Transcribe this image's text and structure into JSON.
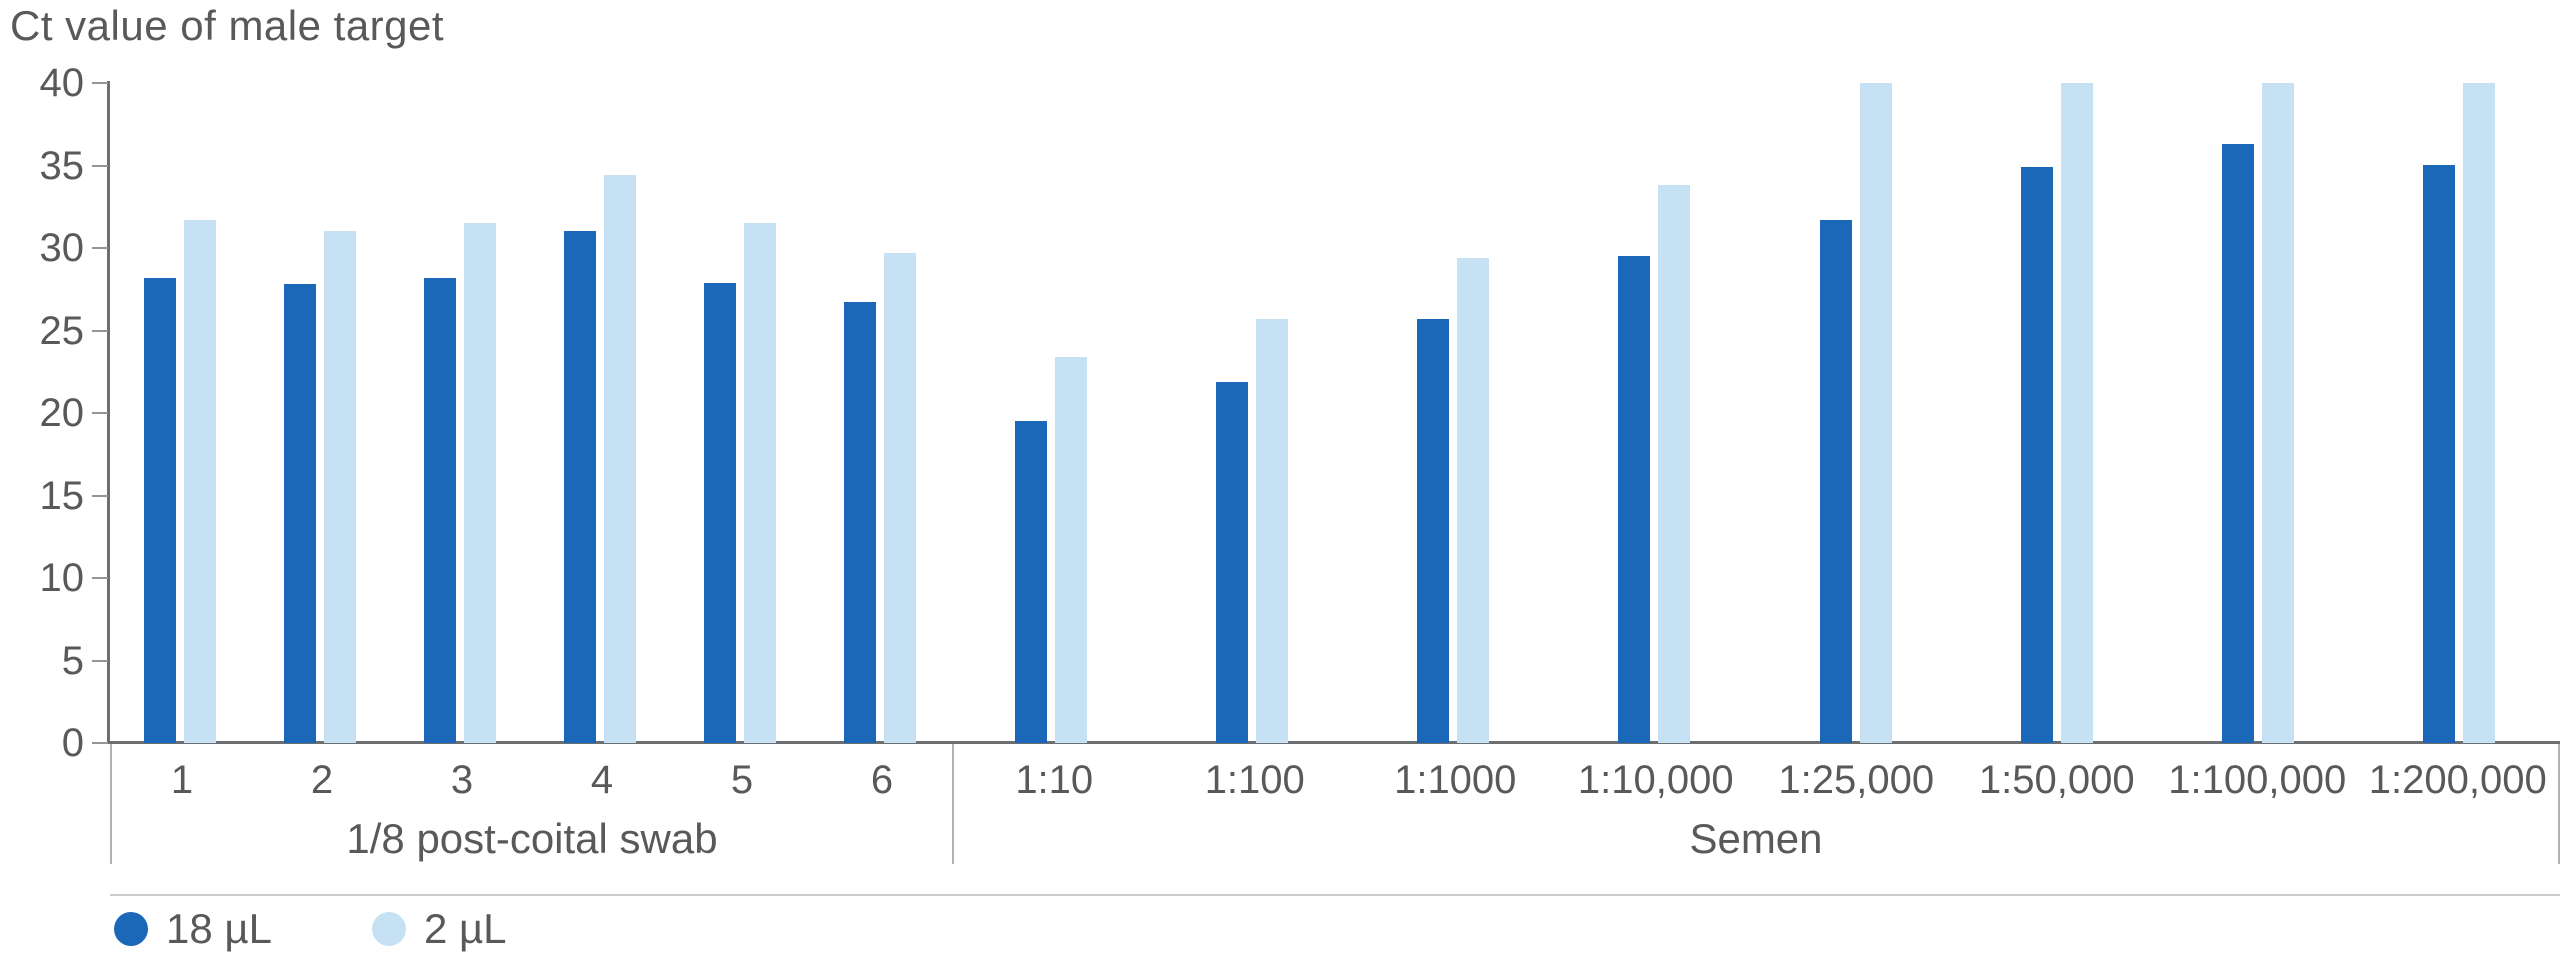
{
  "title": "Ct value of male target",
  "chart_data": {
    "type": "bar",
    "title": "Ct value of male target",
    "ylabel": "Ct value of male target",
    "ylim": [
      0,
      40
    ],
    "ytick_step": 5,
    "yticks": [
      "0",
      "5",
      "10",
      "15",
      "20",
      "25",
      "30",
      "35",
      "40"
    ],
    "grid": false,
    "legend_position": "bottom-left",
    "groups": [
      {
        "label": "1/8 post-coital swab",
        "categories": [
          "1",
          "2",
          "3",
          "4",
          "5",
          "6"
        ],
        "series": [
          {
            "name": "18 µL",
            "values": [
              28.2,
              27.8,
              28.2,
              31.0,
              27.9,
              26.7
            ]
          },
          {
            "name": "2 µL",
            "values": [
              31.7,
              31.0,
              31.5,
              34.4,
              31.5,
              29.7
            ]
          }
        ]
      },
      {
        "label": "Semen",
        "categories": [
          "1:10",
          "1:100",
          "1:1000",
          "1:10,000",
          "1:25,000",
          "1:50,000",
          "1:100,000",
          "1:200,000"
        ],
        "series": [
          {
            "name": "18 µL",
            "values": [
              19.5,
              21.9,
              25.7,
              29.5,
              31.7,
              34.9,
              36.3,
              35.0
            ]
          },
          {
            "name": "2 µL",
            "values": [
              23.4,
              25.7,
              29.4,
              33.8,
              40.0,
              40.0,
              40.0,
              40.0
            ]
          }
        ]
      }
    ]
  },
  "legend": {
    "items": [
      {
        "label": "18 µL",
        "color": "#1b67b8"
      },
      {
        "label": "2 µL",
        "color": "#c7e1f4"
      }
    ]
  },
  "colors": {
    "series_dark": "#1b67b8",
    "series_light": "#c7e1f4",
    "axis": "#6d6e71",
    "tick": "#939598",
    "text": "#58595b",
    "bracket": "#b0b2b5",
    "legend_separator": "#cbcccd"
  }
}
